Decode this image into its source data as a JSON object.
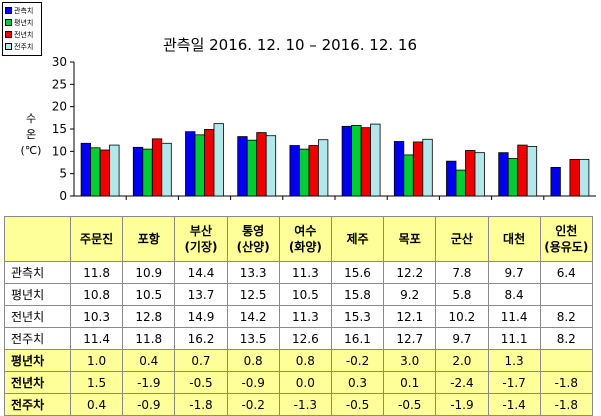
{
  "chart_data": {
    "type": "bar",
    "title": "관측일 2016. 12. 10 – 2016. 12. 16",
    "ylabel": "수온 (℃)",
    "ylim": [
      0,
      30
    ],
    "yticks": [
      0,
      5,
      10,
      15,
      20,
      25,
      30
    ],
    "categories": [
      "주문진",
      "포항",
      "부산 (기장)",
      "통영 (산양)",
      "여수 (화양)",
      "제주",
      "목포",
      "군산",
      "대천",
      "인천 (용유도)"
    ],
    "series": [
      {
        "name": "관측치",
        "color": "#0000ee",
        "values": [
          11.8,
          10.9,
          14.4,
          13.3,
          11.3,
          15.6,
          12.2,
          7.8,
          9.7,
          6.4
        ]
      },
      {
        "name": "평년치",
        "color": "#00cc33",
        "values": [
          10.8,
          10.5,
          13.7,
          12.5,
          10.5,
          15.8,
          9.2,
          5.8,
          8.4,
          null
        ]
      },
      {
        "name": "전년치",
        "color": "#ee0000",
        "values": [
          10.3,
          12.8,
          14.9,
          14.2,
          11.3,
          15.3,
          12.1,
          10.2,
          11.4,
          8.2
        ]
      },
      {
        "name": "전주치",
        "color": "#b3e8ea",
        "values": [
          11.4,
          11.8,
          16.2,
          13.5,
          12.6,
          16.1,
          12.7,
          9.7,
          11.1,
          8.2
        ]
      }
    ],
    "grid": false,
    "legend": "top-left"
  },
  "table": {
    "header_lines": [
      [
        "주문진"
      ],
      [
        "포항"
      ],
      [
        "부산",
        "(기장)"
      ],
      [
        "통영",
        "(산양)"
      ],
      [
        "여수",
        "(화양)"
      ],
      [
        "제주"
      ],
      [
        "목포"
      ],
      [
        "군산"
      ],
      [
        "대천"
      ],
      [
        "인천",
        "(용유도)"
      ]
    ],
    "rows": [
      {
        "label": "관측치",
        "values": [
          "11.8",
          "10.9",
          "14.4",
          "13.3",
          "11.3",
          "15.6",
          "12.2",
          "7.8",
          "9.7",
          "6.4"
        ]
      },
      {
        "label": "평년치",
        "values": [
          "10.8",
          "10.5",
          "13.7",
          "12.5",
          "10.5",
          "15.8",
          "9.2",
          "5.8",
          "8.4",
          ""
        ]
      },
      {
        "label": "전년치",
        "values": [
          "10.3",
          "12.8",
          "14.9",
          "14.2",
          "11.3",
          "15.3",
          "12.1",
          "10.2",
          "11.4",
          "8.2"
        ]
      },
      {
        "label": "전주치",
        "values": [
          "11.4",
          "11.8",
          "16.2",
          "13.5",
          "12.6",
          "16.1",
          "12.7",
          "9.7",
          "11.1",
          "8.2"
        ]
      }
    ],
    "diff_rows": [
      {
        "label": "평년차",
        "values": [
          "1.0",
          "0.4",
          "0.7",
          "0.8",
          "0.8",
          "-0.2",
          "3.0",
          "2.0",
          "1.3",
          ""
        ]
      },
      {
        "label": "전년차",
        "values": [
          "1.5",
          "-1.9",
          "-0.5",
          "-0.9",
          "0.0",
          "0.3",
          "0.1",
          "-2.4",
          "-1.7",
          "-1.8"
        ]
      },
      {
        "label": "전주차",
        "values": [
          "0.4",
          "-0.9",
          "-1.8",
          "-0.2",
          "-1.3",
          "-0.5",
          "-0.5",
          "-1.9",
          "-1.4",
          "-1.8"
        ]
      }
    ]
  }
}
